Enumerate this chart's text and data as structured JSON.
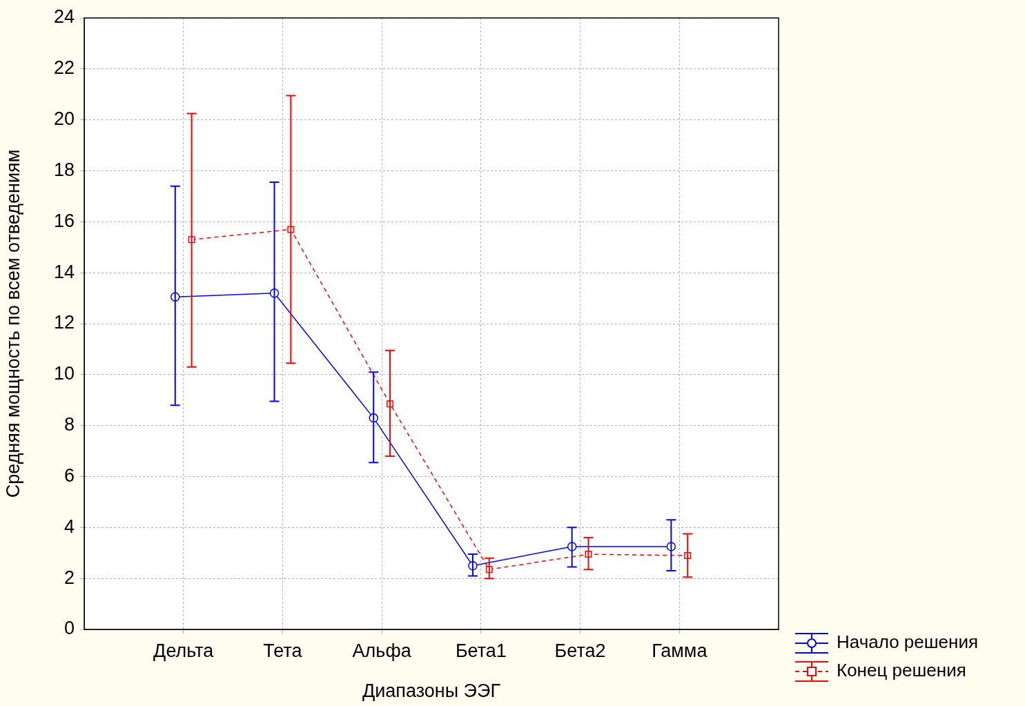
{
  "chart_data": {
    "type": "line",
    "xlabel": "Диапазоны ЭЭГ",
    "ylabel": "Средняя мощность по всем отведениям",
    "categories": [
      "Дельта",
      "Тета",
      "Альфа",
      "Бета1",
      "Бета2",
      "Гамма"
    ],
    "ylim": [
      0,
      24
    ],
    "yticks": [
      0,
      2,
      4,
      6,
      8,
      10,
      12,
      14,
      16,
      18,
      20,
      22,
      24
    ],
    "grid": true,
    "legend": "bottom right",
    "series": [
      {
        "name": "Начало решения",
        "color": "#0000ff",
        "marker": "circle",
        "line_style": "solid",
        "values": [
          13.05,
          13.2,
          8.3,
          2.5,
          3.25,
          3.25
        ],
        "errors": [
          [
            8.8,
            17.4
          ],
          [
            8.95,
            17.55
          ],
          [
            6.55,
            10.1
          ],
          [
            2.1,
            2.95
          ],
          [
            2.45,
            4.0
          ],
          [
            2.3,
            4.3
          ]
        ]
      },
      {
        "name": "Конец решения",
        "color": "#ff0000",
        "marker": "square",
        "line_style": "dashed",
        "values": [
          15.3,
          15.7,
          8.85,
          2.35,
          2.95,
          2.9
        ],
        "errors": [
          [
            10.3,
            20.25
          ],
          [
            10.45,
            20.95
          ],
          [
            6.8,
            10.95
          ],
          [
            2.0,
            2.8
          ],
          [
            2.35,
            3.6
          ],
          [
            2.05,
            3.75
          ]
        ]
      }
    ]
  }
}
